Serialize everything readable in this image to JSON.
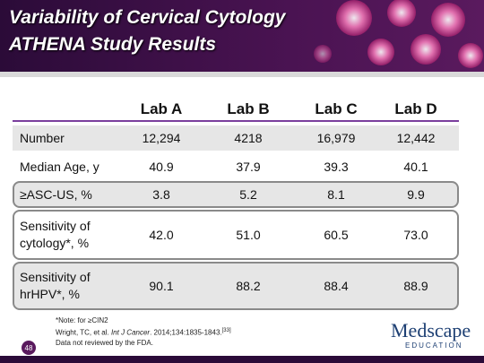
{
  "header": {
    "title_lines": [
      "Variability of Cervical Cytology",
      "ATHENA Study Results"
    ]
  },
  "table": {
    "columns": [
      "",
      "Lab A",
      "Lab B",
      "Lab C",
      "Lab D"
    ],
    "rows": [
      [
        "Number",
        "12,294",
        "4218",
        "16,979",
        "12,442"
      ],
      [
        "Median Age, y",
        "40.9",
        "37.9",
        "39.3",
        "40.1"
      ],
      [
        "≥ASC-US, %",
        "3.8",
        "5.2",
        "8.1",
        "9.9"
      ],
      [
        "Sensitivity of cytology*, %",
        "42.0",
        "51.0",
        "60.5",
        "73.0"
      ],
      [
        "Sensitivity of hrHPV*, %",
        "90.1",
        "88.2",
        "88.4",
        "88.9"
      ]
    ]
  },
  "footnotes": {
    "note": "*Note: for ≥CIN2",
    "citation": [
      "Wright, TC, et al. ",
      "Int J Cancer",
      ". 2014;134:1835-1843.",
      "[33]"
    ],
    "disclaimer": "Data not reviewed by the FDA."
  },
  "logo": {
    "name": "Medscape",
    "sub": "EDUCATION"
  },
  "page_number": "48"
}
